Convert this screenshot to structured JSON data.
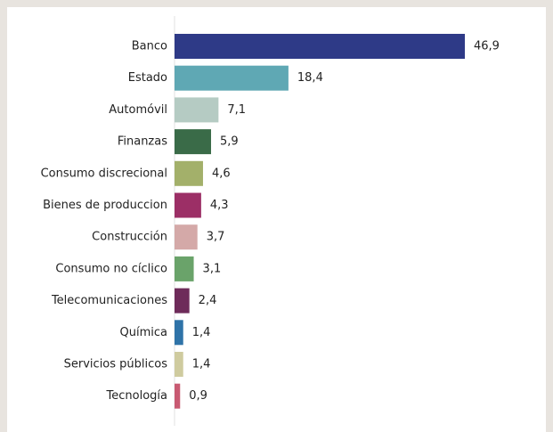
{
  "chart_data": {
    "type": "barh",
    "categories": [
      "Banco",
      "Estado",
      "Automóvil",
      "Finanzas",
      "Consumo discrecional",
      "Bienes de produccion",
      "Construcción",
      "Consumo no cíclico",
      "Telecomunicaciones",
      "Química",
      "Servicios públicos",
      "Tecnología"
    ],
    "values": [
      46.9,
      18.4,
      7.1,
      5.9,
      4.6,
      4.3,
      3.7,
      3.1,
      2.4,
      1.4,
      1.4,
      0.9
    ],
    "value_labels": [
      "46,9",
      "18,4",
      "7,1",
      "5,9",
      "4,6",
      "4,3",
      "3,7",
      "3,1",
      "2,4",
      "1,4",
      "1,4",
      "0,9"
    ],
    "colors": [
      "#2e3a87",
      "#5fa8b4",
      "#b5cbc3",
      "#3a6b48",
      "#a3b06a",
      "#9c2f66",
      "#d4a9a8",
      "#6aa36a",
      "#6e2b5a",
      "#2f73a8",
      "#cfcb9f",
      "#c85a72"
    ]
  }
}
